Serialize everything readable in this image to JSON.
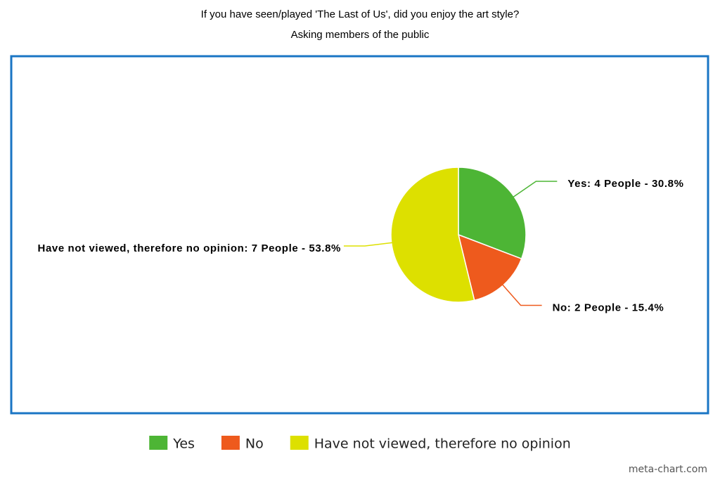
{
  "chart_data": {
    "type": "pie",
    "title": "If you have seen/played 'The Last of Us', did you enjoy the art style?",
    "subtitle": "Asking members of the public",
    "categories": [
      "Yes",
      "No",
      "Have not viewed, therefore no opinion"
    ],
    "values": [
      30.8,
      15.4,
      53.8
    ],
    "value_labels": [
      "Yes: 4 People - 30.8%",
      "No: 2 People - 15.4%",
      "Have not viewed, therefore no opinion: 7 People - 53.8%"
    ],
    "colors": [
      "#4db535",
      "#ee5a1d",
      "#dde000"
    ],
    "legend": "bottom",
    "source": "meta-chart.com"
  }
}
